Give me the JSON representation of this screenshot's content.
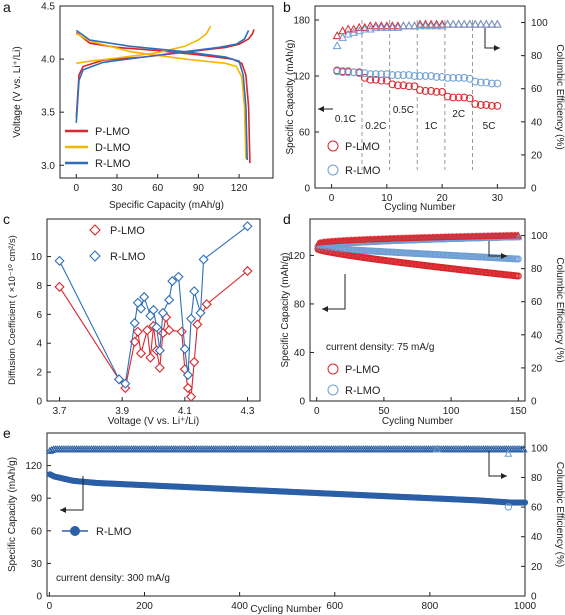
{
  "colors": {
    "red": "#d9262c",
    "yellow": "#f5b800",
    "blue": "#2f6fb7",
    "darkblue": "#2b5fa6",
    "lightblue": "#6f9fd4",
    "gray": "#888888"
  },
  "chart_data": [
    {
      "panel": "a",
      "type": "line",
      "xlabel": "Specific Capacity (mAh/g)",
      "ylabel": "Voltage (V vs. Li⁺/Li)",
      "xlim": [
        -12,
        145
      ],
      "ylim": [
        2.88,
        4.5
      ],
      "xticks": [
        "0",
        "30",
        "60",
        "90",
        "120"
      ],
      "yticks": [
        "3.0",
        "3.5",
        "4.0",
        "4.5"
      ],
      "legend": [
        "P-LMO",
        "D-LMO",
        "R-LMO"
      ],
      "legend_position": "bottom-left",
      "series": [
        {
          "name": "P-LMO",
          "color": "red",
          "charge": [
            [
              0,
              3.45
            ],
            [
              2,
              3.85
            ],
            [
              5,
              3.93
            ],
            [
              20,
              3.99
            ],
            [
              50,
              4.02
            ],
            [
              70,
              4.05
            ],
            [
              90,
              4.08
            ],
            [
              110,
              4.11
            ],
            [
              120,
              4.14
            ],
            [
              127,
              4.19
            ],
            [
              130,
              4.24
            ],
            [
              131,
              4.28
            ]
          ],
          "discharge": [
            [
              0,
              4.25
            ],
            [
              10,
              4.15
            ],
            [
              30,
              4.11
            ],
            [
              60,
              4.08
            ],
            [
              90,
              4.04
            ],
            [
              115,
              4.0
            ],
            [
              122,
              3.96
            ],
            [
              125,
              3.85
            ],
            [
              127,
              3.55
            ],
            [
              128,
              3.02
            ]
          ]
        },
        {
          "name": "D-LMO",
          "color": "yellow",
          "charge": [
            [
              0,
              3.96
            ],
            [
              10,
              3.98
            ],
            [
              30,
              4.01
            ],
            [
              60,
              4.06
            ],
            [
              80,
              4.12
            ],
            [
              90,
              4.18
            ],
            [
              96,
              4.24
            ],
            [
              99,
              4.31
            ]
          ],
          "discharge": [
            [
              0,
              4.24
            ],
            [
              10,
              4.17
            ],
            [
              40,
              4.07
            ],
            [
              80,
              4.0
            ],
            [
              110,
              3.96
            ],
            [
              118,
              3.93
            ],
            [
              122,
              3.83
            ],
            [
              124,
              3.55
            ],
            [
              125,
              3.06
            ]
          ]
        },
        {
          "name": "R-LMO",
          "color": "blue",
          "charge": [
            [
              0,
              3.4
            ],
            [
              2,
              3.8
            ],
            [
              5,
              3.9
            ],
            [
              20,
              3.97
            ],
            [
              50,
              4.02
            ],
            [
              80,
              4.07
            ],
            [
              105,
              4.11
            ],
            [
              118,
              4.14
            ],
            [
              124,
              4.19
            ],
            [
              127,
              4.27
            ]
          ],
          "discharge": [
            [
              0,
              4.27
            ],
            [
              10,
              4.18
            ],
            [
              40,
              4.12
            ],
            [
              80,
              4.07
            ],
            [
              110,
              4.02
            ],
            [
              120,
              3.98
            ],
            [
              123,
              3.85
            ],
            [
              125,
              3.55
            ],
            [
              126,
              3.05
            ]
          ]
        }
      ]
    },
    {
      "panel": "b",
      "type": "scatter",
      "xlabel": "Cycling Number",
      "ylabel": "Specific Capacity (mAh/g)",
      "ylabel2": "Columbic Efficiency (%)",
      "xlim": [
        -3,
        35
      ],
      "ylim": [
        0,
        195
      ],
      "ylim2": [
        0,
        110
      ],
      "xticks": [
        "0",
        "10",
        "20",
        "30"
      ],
      "yticks": [
        "0",
        "60",
        "120",
        "180"
      ],
      "yticks2": [
        "0",
        "20",
        "40",
        "60",
        "80",
        "100"
      ],
      "legend": [
        "P-LMO",
        "R-LMO"
      ],
      "rate_labels": [
        "0.1C",
        "0.2C",
        "0.5C",
        "1C",
        "2C",
        "5C"
      ],
      "rate_dividers": [
        5.5,
        10.5,
        15.5,
        20.5,
        25.5
      ],
      "capacity_P": [
        126,
        125,
        125,
        124,
        124,
        118,
        116,
        116,
        115,
        115,
        111,
        110,
        110,
        109,
        109,
        105,
        104,
        104,
        103,
        103,
        98,
        97,
        97,
        97,
        96,
        90,
        89,
        89,
        88,
        88
      ],
      "capacity_R": [
        125,
        124,
        124,
        124,
        123,
        123,
        122,
        122,
        122,
        122,
        121,
        121,
        121,
        121,
        120,
        120,
        120,
        120,
        119,
        119,
        118,
        118,
        118,
        118,
        117,
        114,
        113,
        113,
        112,
        112
      ],
      "efficiency_P": [
        92,
        95,
        96,
        96,
        97,
        97,
        98,
        98,
        98,
        98,
        98,
        98,
        98,
        98,
        98,
        99,
        99,
        99,
        99,
        99,
        99,
        99,
        99,
        99,
        99,
        99,
        99,
        99,
        99,
        99
      ],
      "efficiency_R": [
        86,
        91,
        93,
        94,
        95,
        96,
        96,
        97,
        97,
        97,
        97,
        97,
        98,
        98,
        98,
        98,
        98,
        98,
        98,
        98,
        99,
        99,
        99,
        99,
        99,
        99,
        99,
        99,
        99,
        99
      ]
    },
    {
      "panel": "c",
      "type": "line",
      "xlabel": "Voltage (V vs. Li⁺/Li)",
      "ylabel": "Diffusion Coefficient ( ×10⁻¹⁰ cm²/s)",
      "xlim": [
        3.66,
        4.34
      ],
      "ylim": [
        0,
        12.6
      ],
      "xticks": [
        "3.7",
        "3.9",
        "4.1",
        "4.3"
      ],
      "yticks": [
        "0",
        "2",
        "4",
        "6",
        "8",
        "10"
      ],
      "legend": [
        "P-LMO",
        "R-LMO"
      ],
      "legend_position": "top-left",
      "series": [
        {
          "name": "P-LMO",
          "color": "red",
          "points": [
            [
              3.7,
              7.9
            ],
            [
              3.89,
              1.5
            ],
            [
              3.91,
              0.9
            ],
            [
              3.94,
              4.1
            ],
            [
              3.95,
              4.8
            ],
            [
              3.96,
              3.3
            ],
            [
              3.98,
              4.9
            ],
            [
              3.99,
              3.0
            ],
            [
              4.0,
              5.2
            ],
            [
              4.01,
              3.5
            ],
            [
              4.02,
              2.3
            ],
            [
              4.03,
              4.7
            ],
            [
              4.04,
              5.8
            ],
            [
              4.05,
              4.9
            ],
            [
              4.09,
              4.8
            ],
            [
              4.1,
              2.2
            ],
            [
              4.11,
              0.9
            ],
            [
              4.12,
              0.3
            ],
            [
              4.13,
              2.7
            ],
            [
              4.14,
              5.3
            ],
            [
              4.17,
              6.7
            ],
            [
              4.3,
              9.0
            ]
          ]
        },
        {
          "name": "R-LMO",
          "color": "blue",
          "points": [
            [
              3.7,
              9.7
            ],
            [
              3.89,
              1.5
            ],
            [
              3.91,
              1.2
            ],
            [
              3.94,
              5.4
            ],
            [
              3.95,
              6.8
            ],
            [
              3.96,
              6.4
            ],
            [
              3.97,
              7.2
            ],
            [
              3.99,
              5.9
            ],
            [
              4.0,
              6.3
            ],
            [
              4.01,
              5.1
            ],
            [
              4.02,
              3.5
            ],
            [
              4.03,
              6.1
            ],
            [
              4.05,
              7.0
            ],
            [
              4.06,
              8.3
            ],
            [
              4.08,
              8.6
            ],
            [
              4.1,
              3.6
            ],
            [
              4.11,
              1.8
            ],
            [
              4.12,
              5.7
            ],
            [
              4.13,
              7.6
            ],
            [
              4.15,
              6.1
            ],
            [
              4.16,
              9.8
            ],
            [
              4.3,
              12.1
            ]
          ]
        }
      ]
    },
    {
      "panel": "d",
      "type": "scatter",
      "xlabel": "Cycling Number",
      "ylabel": "Specific Capacity (mAh/g)",
      "ylabel2": "Columbic Efficiency (%)",
      "xlim": [
        -5,
        155
      ],
      "ylim": [
        0,
        150
      ],
      "ylim2": [
        0,
        110
      ],
      "xticks": [
        "0",
        "50",
        "100",
        "150"
      ],
      "yticks": [
        "0",
        "40",
        "80",
        "120"
      ],
      "yticks2": [
        "0",
        "20",
        "40",
        "60",
        "80",
        "100"
      ],
      "legend": [
        "P-LMO",
        "R-LMO"
      ],
      "annotation": "current density: 75 mA/g",
      "cycles": 150,
      "capacity_P": {
        "start": 125,
        "end": 103
      },
      "capacity_R": {
        "start": 126,
        "end": 117
      },
      "efficiency_P": {
        "start": 95,
        "end": 100
      },
      "efficiency_R": {
        "start": 93,
        "end": 99
      }
    },
    {
      "panel": "e",
      "type": "line",
      "xlabel": "Cycling Number",
      "ylabel": "Specific Capacity (mAh/g)",
      "ylabel2": "Columbic Efficiency (%)",
      "xlim": [
        -5,
        1000
      ],
      "ylim": [
        0,
        150
      ],
      "ylim2": [
        0,
        110
      ],
      "xticks": [
        "0",
        "200",
        "400",
        "600",
        "800",
        "1000"
      ],
      "yticks": [
        "0",
        "30",
        "60",
        "90",
        "120"
      ],
      "yticks2": [
        "0",
        "20",
        "40",
        "60",
        "80",
        "100"
      ],
      "legend": [
        "R-LMO"
      ],
      "annotation": "current density: 300 mA/g",
      "cycles": 1000,
      "capacity": [
        [
          1,
          112
        ],
        [
          10,
          110
        ],
        [
          50,
          106
        ],
        [
          100,
          104
        ],
        [
          200,
          102
        ],
        [
          300,
          100
        ],
        [
          400,
          98
        ],
        [
          500,
          96
        ],
        [
          600,
          94
        ],
        [
          700,
          92
        ],
        [
          800,
          90
        ],
        [
          900,
          88
        ],
        [
          970,
          86
        ],
        [
          1000,
          86
        ]
      ],
      "efficiency": [
        [
          1,
          98
        ],
        [
          10,
          99
        ],
        [
          100,
          99
        ],
        [
          500,
          99
        ],
        [
          1000,
          99
        ]
      ]
    }
  ]
}
